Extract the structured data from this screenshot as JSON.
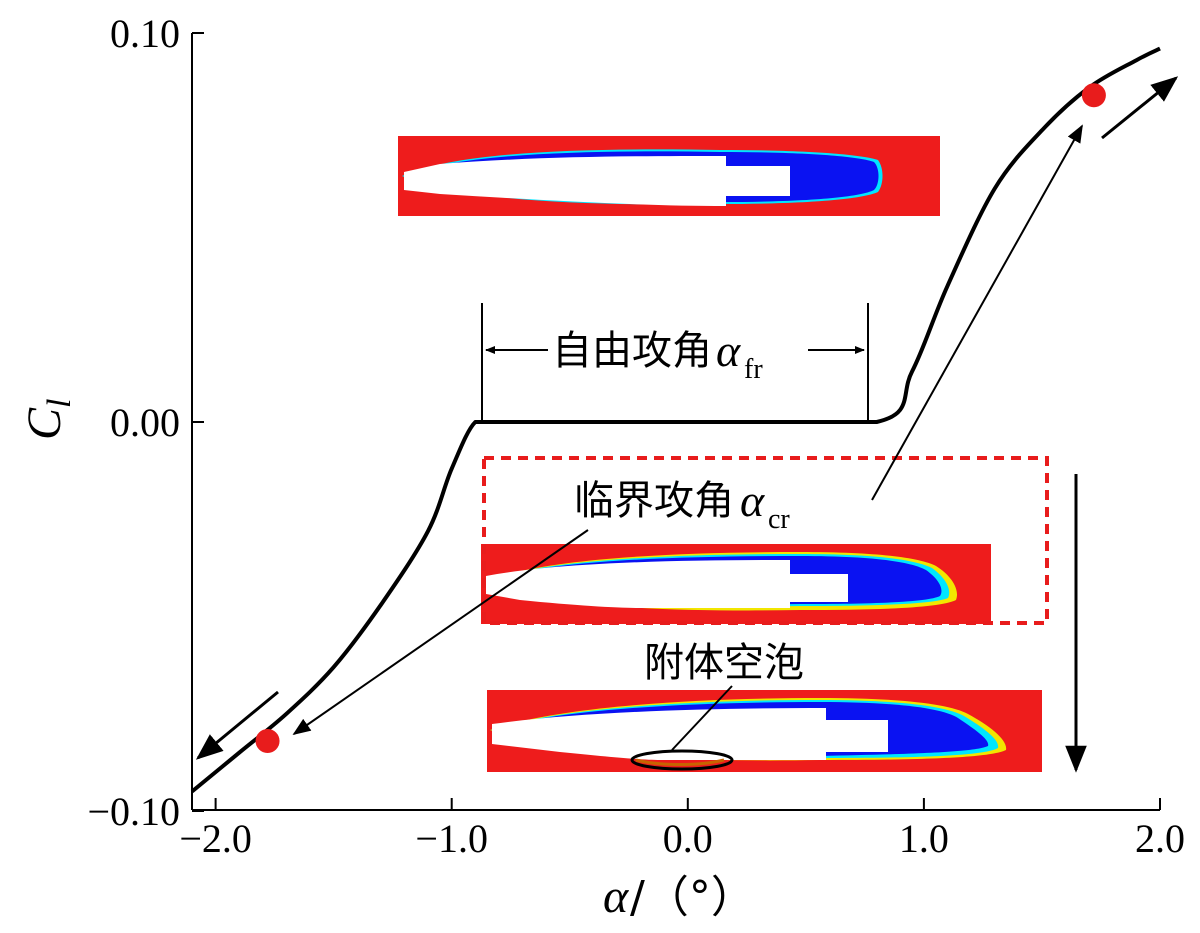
{
  "chart_data": {
    "type": "line",
    "title": "",
    "xlabel": "α/（°）",
    "xlabel_symbol": "α",
    "xlabel_unit": "/（°）",
    "ylabel": "C_l",
    "ylabel_main": "C",
    "ylabel_sub": "l",
    "xlim": [
      -2.1,
      2.0
    ],
    "ylim": [
      -0.1,
      0.1
    ],
    "xticks": [
      -2.0,
      -1.0,
      0.0,
      1.0,
      2.0
    ],
    "xtick_labels": [
      "−2.0",
      "−1.0",
      "0.0",
      "1.0",
      "2.0"
    ],
    "yticks": [
      0.1,
      0.0,
      -0.1
    ],
    "ytick_labels": [
      "0.10",
      "0.00",
      "−0.10"
    ],
    "series": [
      {
        "name": "C_l curve",
        "x": [
          -2.1,
          -1.9,
          -1.7,
          -1.5,
          -1.3,
          -1.1,
          -1.0,
          -0.9,
          -0.8,
          0.0,
          0.8,
          0.95,
          1.1,
          1.3,
          1.5,
          1.7,
          1.9,
          2.0
        ],
        "y": [
          -0.095,
          -0.085,
          -0.075,
          -0.063,
          -0.047,
          -0.028,
          -0.012,
          0.0,
          0.0,
          0.0,
          0.0,
          0.013,
          0.035,
          0.06,
          0.075,
          0.086,
          0.093,
          0.096
        ]
      }
    ],
    "markers": [
      {
        "name": "right-marker",
        "x": 1.72,
        "y": 0.084,
        "color": "#e81c1c"
      },
      {
        "name": "left-marker",
        "x": -1.78,
        "y": -0.082,
        "color": "#e81c1c"
      }
    ],
    "annotations": {
      "free_angle": {
        "text": "自由攻角",
        "symbol": "α",
        "sub": "fr",
        "x_from": -0.8,
        "x_to": 0.8
      },
      "critical_angle": {
        "text": "临界攻角",
        "symbol": "α",
        "sub": "cr"
      },
      "attached_cavity": {
        "text": "附体空泡"
      }
    }
  },
  "colors": {
    "curve": "#000000",
    "marker": "#e81c1c",
    "inset_bg": "#ee1c1c",
    "cavity_blue": "#0a12f2",
    "dash_box": "#e81c1c"
  }
}
